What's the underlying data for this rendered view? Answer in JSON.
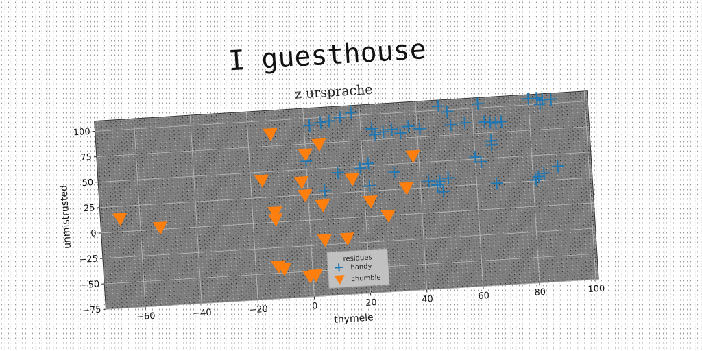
{
  "chart_data": {
    "type": "scatter",
    "title": "I guesthouse",
    "subtitle": "z ursprache",
    "xlabel": "thymele",
    "ylabel": "unmistrusted",
    "xlim": [
      -74,
      101
    ],
    "ylim": [
      -75,
      110
    ],
    "xticks": [
      -60,
      -40,
      -20,
      0,
      20,
      40,
      60,
      80,
      100
    ],
    "yticks": [
      -75,
      -50,
      -25,
      0,
      25,
      50,
      75,
      100
    ],
    "grid": true,
    "legend": {
      "title": "residues",
      "placement": "lower-center"
    },
    "colors": {
      "plot_bg": "#7f7f7f",
      "grid": "#bdbdbd"
    },
    "series": [
      {
        "name": "bandy",
        "marker": "plus",
        "color": "#1f77b4",
        "points": [
          [
            2,
            93
          ],
          [
            6,
            95
          ],
          [
            9,
            96
          ],
          [
            13,
            99
          ],
          [
            17,
            103
          ],
          [
            24,
            86
          ],
          [
            25,
            80
          ],
          [
            28,
            82
          ],
          [
            31,
            84
          ],
          [
            34,
            80
          ],
          [
            37,
            86
          ],
          [
            41,
            83
          ],
          [
            48,
            104
          ],
          [
            51,
            98
          ],
          [
            52,
            85
          ],
          [
            62,
            104
          ],
          [
            57,
            86
          ],
          [
            64,
            86
          ],
          [
            66,
            85
          ],
          [
            68,
            84
          ],
          [
            70,
            85
          ],
          [
            66,
            67
          ],
          [
            66,
            63
          ],
          [
            80,
            106
          ],
          [
            83,
            106
          ],
          [
            85,
            104
          ],
          [
            88,
            104
          ],
          [
            84,
            100
          ],
          [
            0,
            58
          ],
          [
            11,
            45
          ],
          [
            19,
            48
          ],
          [
            22,
            52
          ],
          [
            31,
            42
          ],
          [
            6,
            28
          ],
          [
            22,
            30
          ],
          [
            43,
            31
          ],
          [
            46,
            27
          ],
          [
            47,
            30
          ],
          [
            48,
            20
          ],
          [
            50,
            33
          ],
          [
            60,
            52
          ],
          [
            62,
            47
          ],
          [
            67,
            25
          ],
          [
            81,
            26
          ],
          [
            82,
            29
          ],
          [
            84,
            32
          ],
          [
            89,
            38
          ]
        ]
      },
      {
        "name": "chumble",
        "marker": "triangle-down",
        "color": "#ff7f0e",
        "points": [
          [
            -67,
            13
          ],
          [
            -53,
            2
          ],
          [
            -12,
            87
          ],
          [
            -16,
            42
          ],
          [
            -12,
            10
          ],
          [
            -12,
            3
          ],
          [
            -2,
            38
          ],
          [
            -1,
            25
          ],
          [
            0,
            65
          ],
          [
            5,
            74
          ],
          [
            5,
            14
          ],
          [
            16,
            38
          ],
          [
            22,
            15
          ],
          [
            28,
            0
          ],
          [
            35,
            26
          ],
          [
            38,
            57
          ],
          [
            5,
            -20
          ],
          [
            13,
            -20
          ],
          [
            -12,
            -43
          ],
          [
            -10,
            -46
          ],
          [
            1,
            -54
          ],
          [
            -1,
            -55
          ]
        ]
      }
    ]
  }
}
